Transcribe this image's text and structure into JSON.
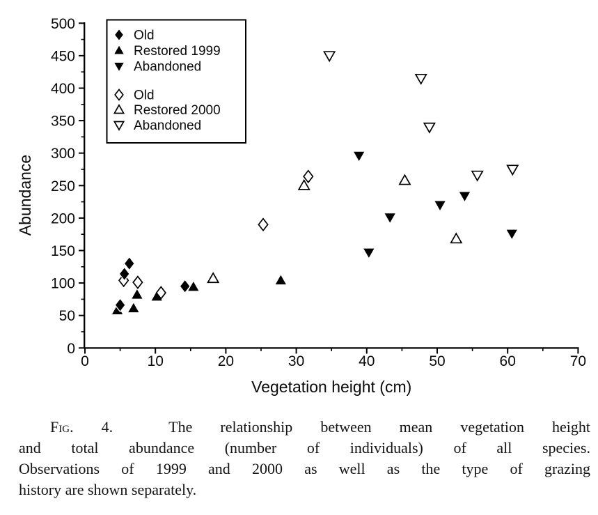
{
  "figure": {
    "caption": {
      "fig_label": "Fig. 4.",
      "line1_rest": "  The relationship between mean vegetation height",
      "lines": [
        "and total abundance (number of individuals) of all species.",
        "Observations of 1999 and 2000 as well as the type of grazing",
        "history are shown separately."
      ]
    }
  },
  "chart_data": {
    "type": "scatter",
    "title": "",
    "xlabel": "Vegetation height (cm)",
    "ylabel": "Abundance",
    "xlim": [
      0,
      70
    ],
    "ylim": [
      0,
      500
    ],
    "x_major_ticks": [
      0,
      10,
      20,
      30,
      40,
      50,
      60,
      70
    ],
    "x_minor_ticks": [
      5,
      15,
      25,
      35,
      45,
      55,
      65
    ],
    "y_major_ticks": [
      0,
      50,
      100,
      150,
      200,
      250,
      300,
      350,
      400,
      450,
      500
    ],
    "y_minor_ticks": [
      25,
      75,
      125,
      175,
      225,
      275,
      325,
      375,
      425,
      475
    ],
    "grid": false,
    "marker_color": "#000000",
    "background": "#ffffff",
    "legend": {
      "position": "top-left",
      "items": [
        {
          "label": "Old",
          "marker": "diamond",
          "fill": "filled"
        },
        {
          "label": "Restored 1999",
          "marker": "triangle-up",
          "fill": "filled"
        },
        {
          "label": "Abandoned",
          "marker": "triangle-down",
          "fill": "filled"
        },
        {
          "label": "Old",
          "marker": "diamond",
          "fill": "open"
        },
        {
          "label": "Restored 2000",
          "marker": "triangle-up",
          "fill": "open"
        },
        {
          "label": "Abandoned",
          "marker": "triangle-down",
          "fill": "open"
        }
      ]
    },
    "series": [
      {
        "name": "Restored 1999",
        "marker": "triangle-up",
        "fill": "filled",
        "points": [
          [
            4.6,
            58
          ],
          [
            6.9,
            61
          ],
          [
            7.4,
            82
          ],
          [
            10.2,
            79
          ],
          [
            15.4,
            94
          ],
          [
            27.8,
            104
          ]
        ]
      },
      {
        "name": "Abandoned 1999",
        "marker": "triangle-down",
        "fill": "filled",
        "points": [
          [
            38.9,
            296
          ],
          [
            40.3,
            147
          ],
          [
            43.3,
            201
          ],
          [
            50.4,
            220
          ],
          [
            53.9,
            234
          ],
          [
            60.6,
            176
          ]
        ]
      },
      {
        "name": "Old 2000",
        "marker": "diamond",
        "fill": "open",
        "points": [
          [
            5.5,
            104
          ],
          [
            7.5,
            101
          ],
          [
            10.8,
            85
          ],
          [
            25.3,
            190
          ],
          [
            31.7,
            264
          ]
        ]
      },
      {
        "name": "Old 1999",
        "marker": "diamond",
        "fill": "filled",
        "points": [
          [
            5.0,
            66
          ],
          [
            5.6,
            114
          ],
          [
            6.3,
            130
          ],
          [
            14.2,
            95
          ]
        ]
      },
      {
        "name": "Restored 2000",
        "marker": "triangle-up",
        "fill": "open",
        "points": [
          [
            18.2,
            107
          ],
          [
            31.1,
            250
          ],
          [
            45.4,
            258
          ],
          [
            52.7,
            168
          ]
        ]
      },
      {
        "name": "Abandoned 2000",
        "marker": "triangle-down",
        "fill": "open",
        "points": [
          [
            34.7,
            450
          ],
          [
            47.7,
            415
          ],
          [
            48.9,
            340
          ],
          [
            55.7,
            266
          ],
          [
            60.7,
            275
          ]
        ]
      }
    ]
  }
}
